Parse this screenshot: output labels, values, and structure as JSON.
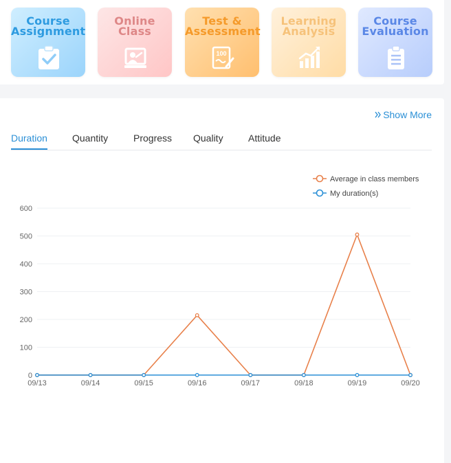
{
  "tiles": [
    {
      "line1": "Course",
      "line2": "Assignment",
      "icon": "clipboard-check-icon"
    },
    {
      "line1": "Online",
      "line2": "Class",
      "icon": "teacher-board-icon"
    },
    {
      "line1": "Test &",
      "line2": "Assessment",
      "icon": "test-paper-icon"
    },
    {
      "line1": "Learning",
      "line2": "Analysis",
      "icon": "bar-chart-icon"
    },
    {
      "line1": "Course",
      "line2": "Evaluation",
      "icon": "evaluation-list-icon"
    }
  ],
  "show_more": "Show More",
  "tabs": [
    "Duration",
    "Quantity",
    "Progress",
    "Quality",
    "Attitude"
  ],
  "active_tab": "Duration",
  "colors": {
    "accent": "#2a8fd6",
    "series_average": "#e8804a",
    "series_mine": "#2a8fd6"
  },
  "chart_data": {
    "type": "line",
    "x": [
      "09/13",
      "09/14",
      "09/15",
      "09/16",
      "09/17",
      "09/18",
      "09/19",
      "09/20"
    ],
    "ylim": [
      0,
      600
    ],
    "yticks": [
      "0",
      "100",
      "200",
      "300",
      "400",
      "500",
      "600"
    ],
    "legend_position": "top-right",
    "grid": "horizontal",
    "series": [
      {
        "name": "Average in class members",
        "values": [
          0,
          0,
          0,
          215,
          0,
          0,
          505,
          0
        ]
      },
      {
        "name": "My duration(s)",
        "values": [
          0,
          0,
          0,
          0,
          0,
          0,
          0,
          0
        ]
      }
    ]
  }
}
